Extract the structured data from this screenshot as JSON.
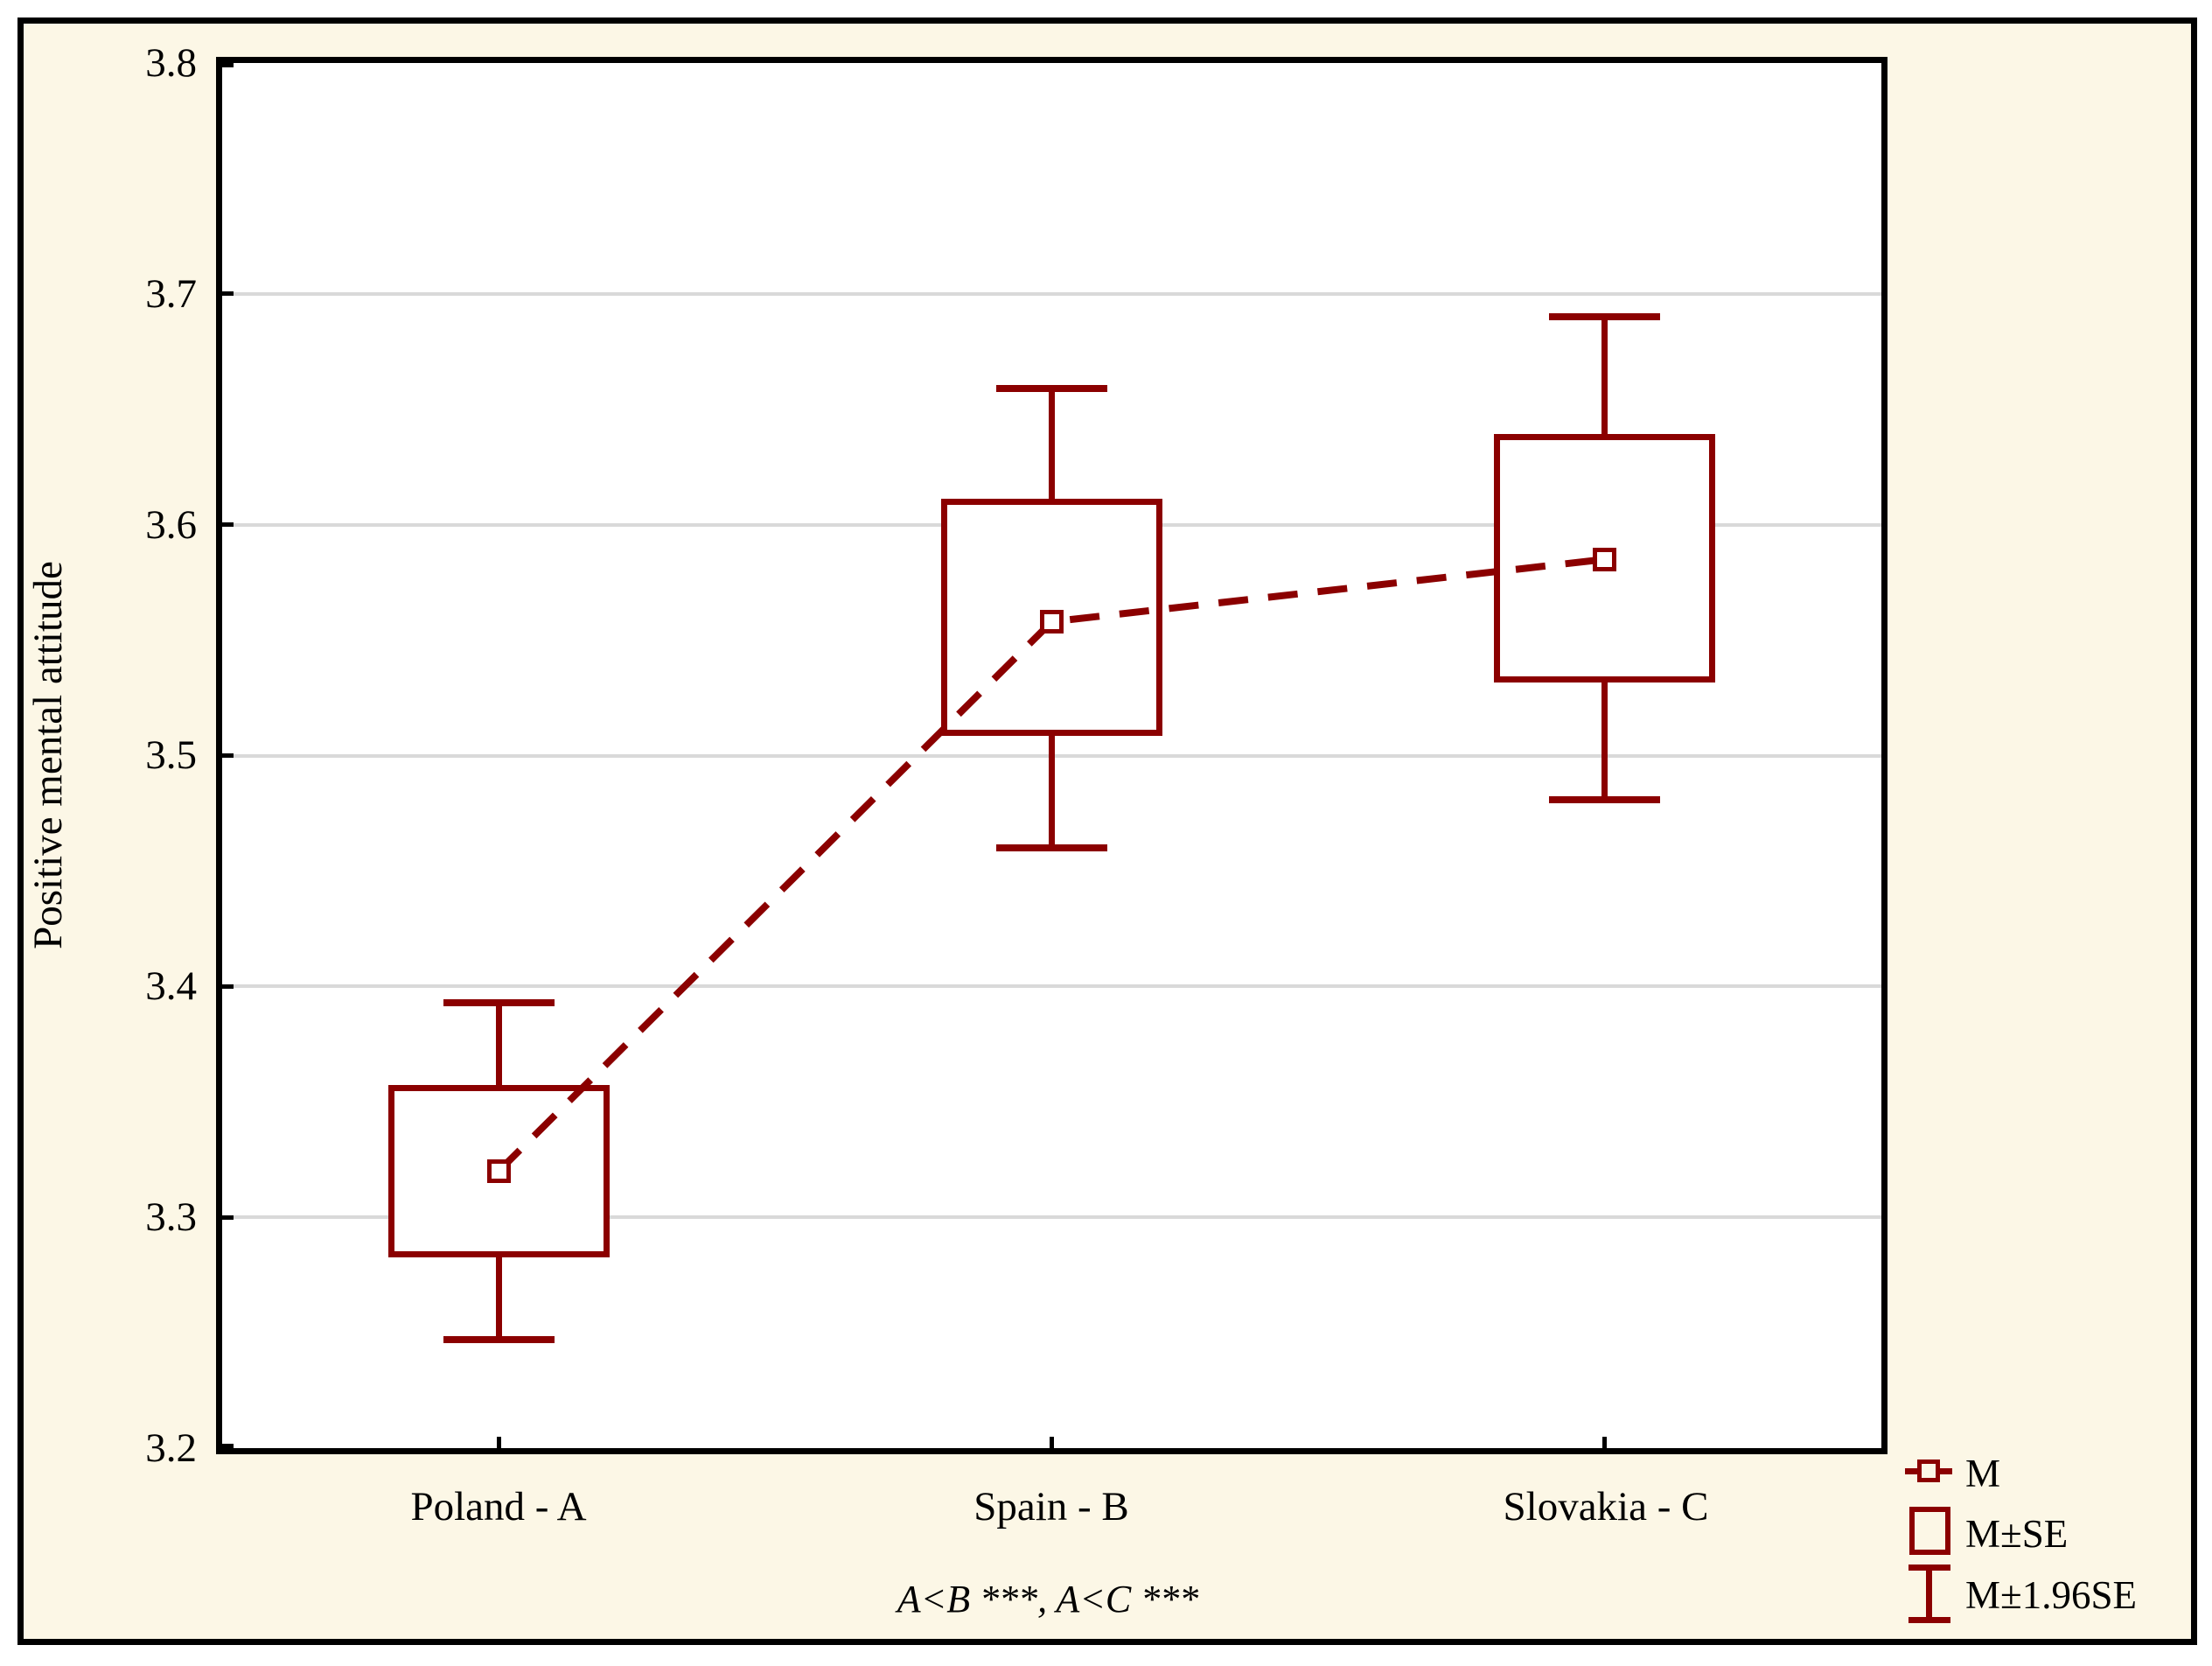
{
  "style": {
    "accent_color": "#8B0000",
    "background_color": "#FCF7E6",
    "plot_background": "#FFFFFF",
    "gridline_color": "#D9D9D9",
    "frame_color": "#000000"
  },
  "chart_data": {
    "type": "box",
    "subtype": "mean-whisker-plot",
    "title": "",
    "xlabel": "",
    "ylabel": "Positive mental attitude",
    "ylim": [
      3.2,
      3.8
    ],
    "ytick_step": 0.1,
    "yticks": [
      "3.8",
      "3.7",
      "3.6",
      "3.5",
      "3.4",
      "3.3",
      "3.2"
    ],
    "grid": "horizontal",
    "categories": [
      "Poland - A",
      "Spain - B",
      "Slovakia - C"
    ],
    "series": [
      {
        "category": "Poland - A",
        "mean": 3.32,
        "se_low": 3.284,
        "se_high": 3.356,
        "ci_low": 3.247,
        "ci_high": 3.393
      },
      {
        "category": "Spain - B",
        "mean": 3.558,
        "se_low": 3.51,
        "se_high": 3.61,
        "ci_low": 3.46,
        "ci_high": 3.659
      },
      {
        "category": "Slovakia - C",
        "mean": 3.585,
        "se_low": 3.533,
        "se_high": 3.638,
        "ci_low": 3.481,
        "ci_high": 3.69
      }
    ],
    "connector": "dashed-line-through-means",
    "annotation": "A<B ***, A<C ***",
    "legend_position": "bottom-right",
    "legend": [
      {
        "symbol": "mean-square-marker",
        "label": "M"
      },
      {
        "symbol": "se-box",
        "label": "M±SE"
      },
      {
        "symbol": "ci-whisker",
        "label": "M±1.96SE"
      }
    ]
  }
}
